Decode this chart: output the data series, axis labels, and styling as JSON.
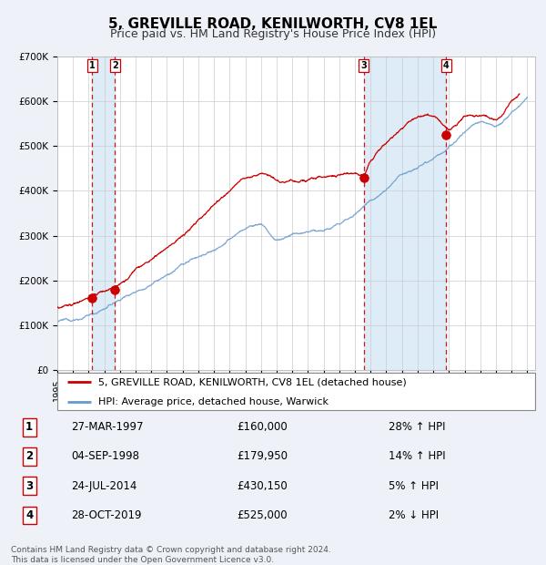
{
  "title": "5, GREVILLE ROAD, KENILWORTH, CV8 1EL",
  "subtitle": "Price paid vs. HM Land Registry's House Price Index (HPI)",
  "ylim": [
    0,
    700000
  ],
  "yticks": [
    0,
    100000,
    200000,
    300000,
    400000,
    500000,
    600000,
    700000
  ],
  "ytick_labels": [
    "£0",
    "£100K",
    "£200K",
    "£300K",
    "£400K",
    "£500K",
    "£600K",
    "£700K"
  ],
  "xlim_start": 1995.0,
  "xlim_end": 2025.5,
  "background_color": "#eef2f8",
  "plot_bg_color": "#ffffff",
  "red_line_color": "#cc0000",
  "blue_line_color": "#6699cc",
  "shade_color": "#d0e4f5",
  "sale_dates": [
    1997.23,
    1998.67,
    2014.56,
    2019.83
  ],
  "sale_prices": [
    160000,
    179950,
    430150,
    525000
  ],
  "sale_labels": [
    "1",
    "2",
    "3",
    "4"
  ],
  "dashed_line_color": "#cc0000",
  "legend_label_red": "5, GREVILLE ROAD, KENILWORTH, CV8 1EL (detached house)",
  "legend_label_blue": "HPI: Average price, detached house, Warwick",
  "table_entries": [
    {
      "num": "1",
      "date": "27-MAR-1997",
      "price": "£160,000",
      "pct": "28% ↑ HPI"
    },
    {
      "num": "2",
      "date": "04-SEP-1998",
      "price": "£179,950",
      "pct": "14% ↑ HPI"
    },
    {
      "num": "3",
      "date": "24-JUL-2014",
      "price": "£430,150",
      "pct": "5% ↑ HPI"
    },
    {
      "num": "4",
      "date": "28-OCT-2019",
      "price": "£525,000",
      "pct": "2% ↓ HPI"
    }
  ],
  "footer": "Contains HM Land Registry data © Crown copyright and database right 2024.\nThis data is licensed under the Open Government Licence v3.0.",
  "title_fontsize": 11,
  "subtitle_fontsize": 9,
  "tick_fontsize": 7.5,
  "legend_fontsize": 8,
  "table_fontsize": 8.5,
  "footer_fontsize": 6.5,
  "hpi_years_key": [
    1995,
    1996,
    1997,
    1998,
    1999,
    2000,
    2001,
    2002,
    2003,
    2004,
    2005,
    2006,
    2007,
    2008,
    2009,
    2010,
    2011,
    2012,
    2013,
    2014,
    2015,
    2016,
    2017,
    2018,
    2019,
    2020,
    2021,
    2022,
    2023,
    2024,
    2025
  ],
  "hpi_vals_key": [
    108000,
    112000,
    122000,
    138000,
    158000,
    180000,
    200000,
    218000,
    238000,
    258000,
    272000,
    295000,
    320000,
    330000,
    295000,
    305000,
    308000,
    312000,
    325000,
    350000,
    380000,
    410000,
    440000,
    465000,
    490000,
    505000,
    540000,
    565000,
    555000,
    585000,
    615000
  ],
  "red_years_key": [
    1995,
    1996,
    1997.0,
    1997.23,
    1998.0,
    1998.67,
    1999.5,
    2000,
    2001,
    2002,
    2003,
    2004,
    2005,
    2006,
    2007,
    2008,
    2008.5,
    2009,
    2009.5,
    2010,
    2011,
    2012,
    2013,
    2014.0,
    2014.56,
    2015,
    2016,
    2017,
    2018,
    2019.0,
    2019.83,
    2020,
    2021,
    2022,
    2023,
    2024,
    2024.5
  ],
  "red_vals_key": [
    140000,
    145000,
    155000,
    160000,
    170000,
    179950,
    200000,
    218000,
    238000,
    260000,
    285000,
    320000,
    360000,
    395000,
    425000,
    430000,
    425000,
    415000,
    410000,
    415000,
    420000,
    420000,
    425000,
    428000,
    430150,
    465000,
    500000,
    530000,
    550000,
    555000,
    525000,
    520000,
    550000,
    555000,
    540000,
    575000,
    595000
  ]
}
